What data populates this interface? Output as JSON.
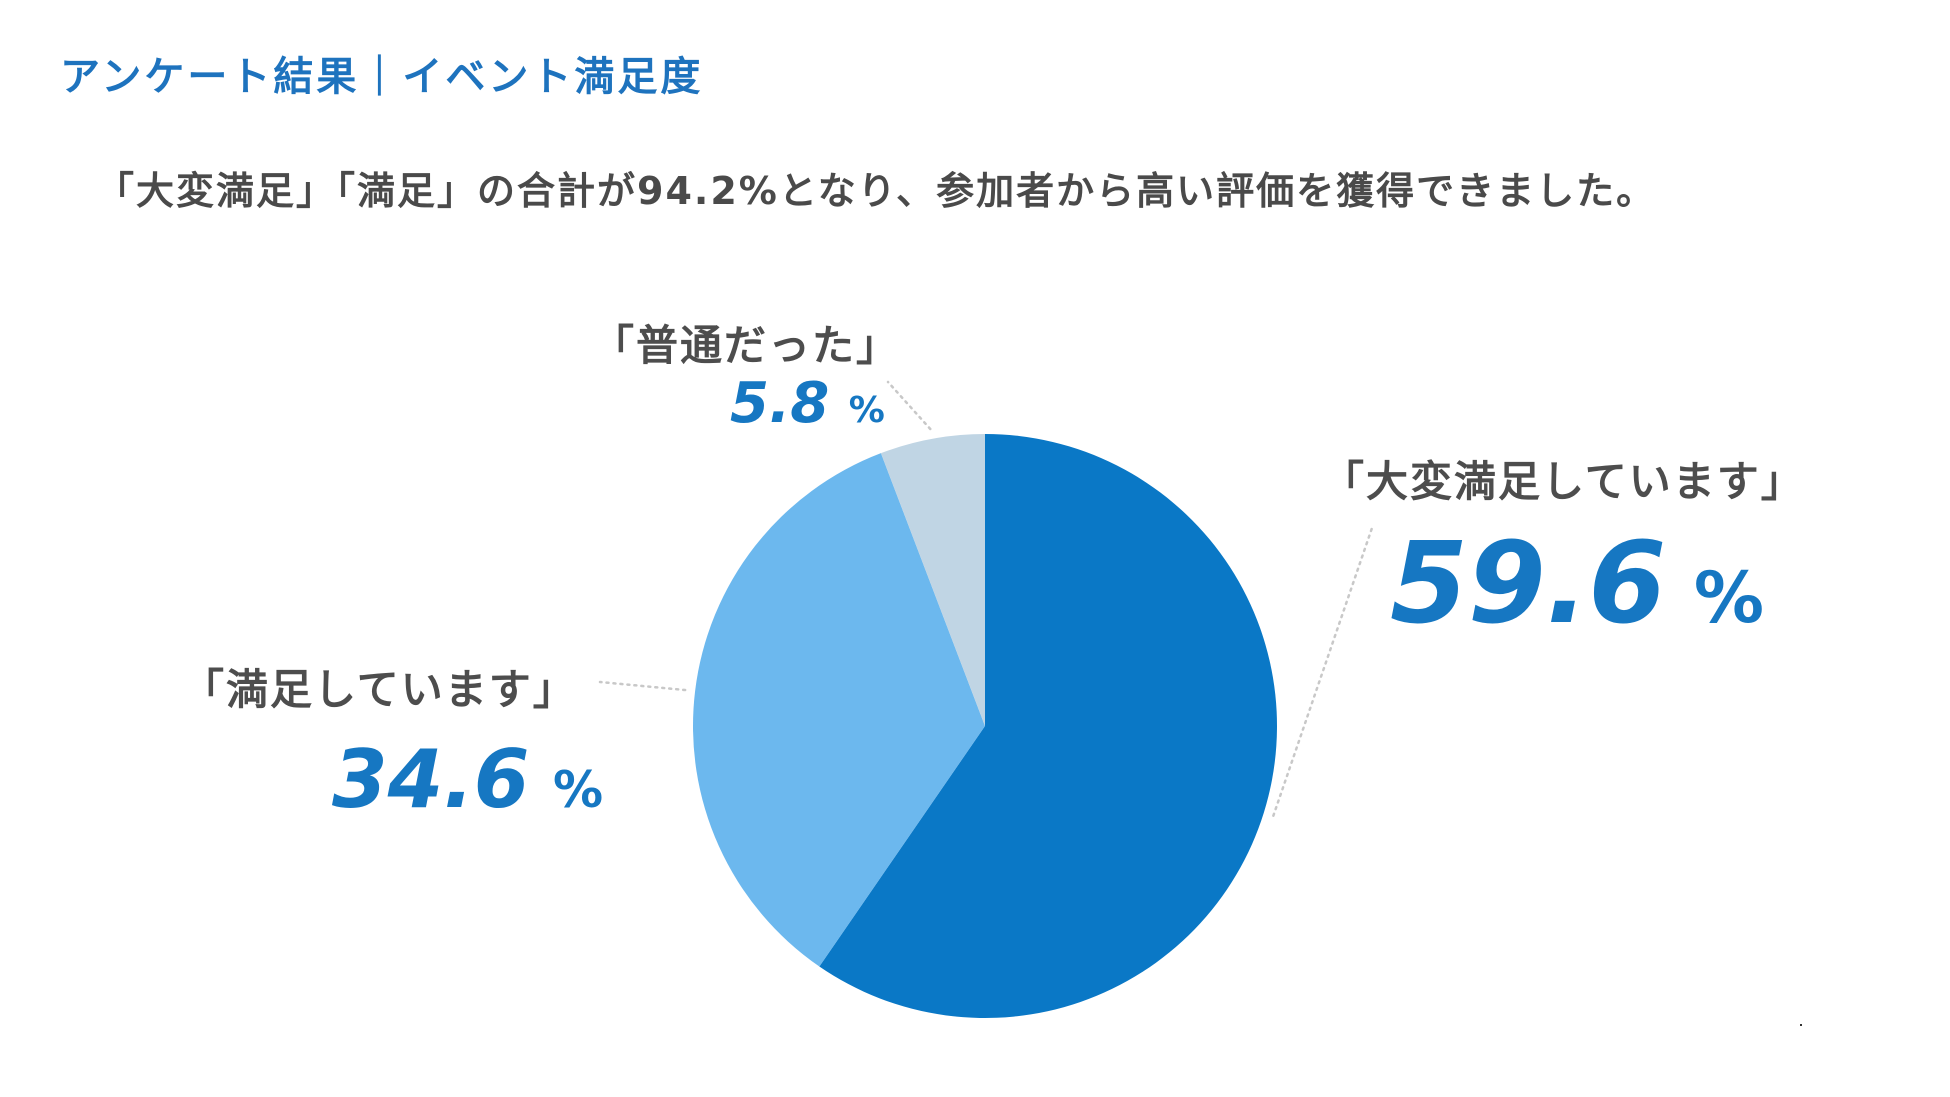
{
  "header": {
    "title": "アンケート結果｜イベント満足度"
  },
  "summary": {
    "text": "「大変満足」「満足」の合計が94.2%となり、参加者から高い評価を獲得できました。"
  },
  "colors": {
    "title": "#1e73be",
    "value_text": "#1677c2",
    "label_text": "#4d4d4d",
    "leader_line": "#c8c8c8"
  },
  "chart_data": {
    "type": "pie",
    "unit": "%",
    "start_angle_deg": 0,
    "direction": "clockwise",
    "slices": [
      {
        "label": "「大変満足しています」",
        "value": 59.6,
        "value_text": "59.6",
        "color": "#0a78c6"
      },
      {
        "label": "「満足しています」",
        "value": 34.6,
        "value_text": "34.6",
        "color": "#6cb8ee"
      },
      {
        "label": "「普通だった」",
        "value": 5.8,
        "value_text": "5.8",
        "color": "#c0d5e4"
      }
    ]
  }
}
